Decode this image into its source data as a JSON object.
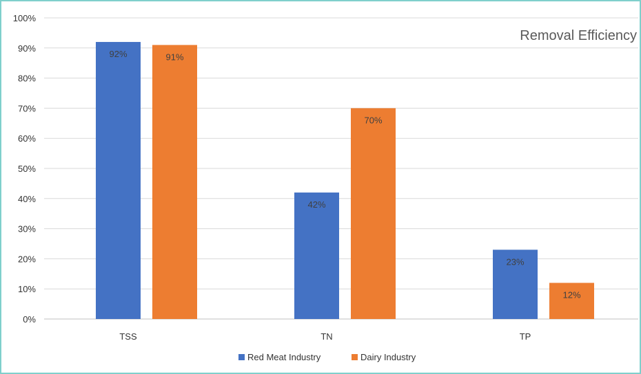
{
  "chart_data": {
    "type": "bar",
    "title": "Removal Efficiency",
    "categories": [
      "TSS",
      "TN",
      "TP"
    ],
    "series": [
      {
        "name": "Red Meat Industry",
        "values": [
          92,
          42,
          23
        ],
        "color": "#4472c4"
      },
      {
        "name": "Dairy Industry",
        "values": [
          91,
          70,
          12
        ],
        "color": "#ed7d31"
      }
    ],
    "data_labels": [
      [
        "92%",
        "42%",
        "23%"
      ],
      [
        "91%",
        "70%",
        "12%"
      ]
    ],
    "ylim": [
      0,
      100
    ],
    "yticks": [
      0,
      10,
      20,
      30,
      40,
      50,
      60,
      70,
      80,
      90,
      100
    ],
    "ytick_labels": [
      "0%",
      "10%",
      "20%",
      "30%",
      "40%",
      "50%",
      "60%",
      "70%",
      "80%",
      "90%",
      "100%"
    ],
    "grid": true,
    "legend": "bottom",
    "gridline_color": "#d9d9d9"
  }
}
